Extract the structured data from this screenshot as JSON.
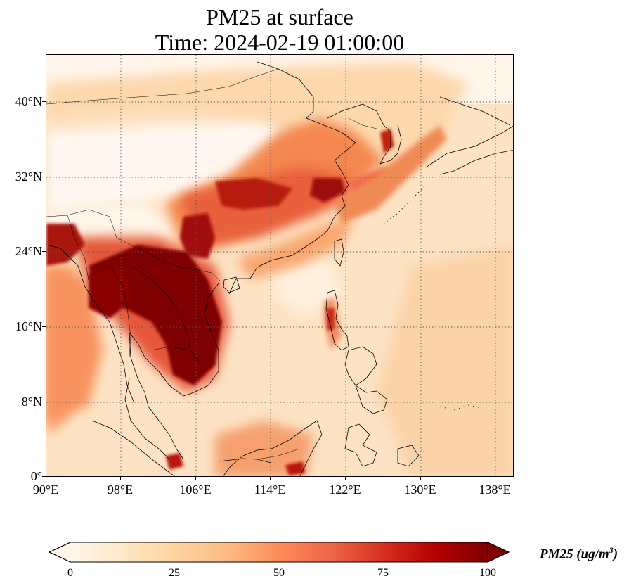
{
  "title": {
    "line1": "PM25 at surface",
    "line2": "Time: 2024-02-19 01:00:00"
  },
  "map": {
    "projection": "plate carree",
    "lon_range": [
      90,
      140
    ],
    "lat_range": [
      0,
      45
    ],
    "gridlines": "dotted",
    "x_ticks": [
      {
        "lon": 90,
        "label": "90°E"
      },
      {
        "lon": 98,
        "label": "98°E"
      },
      {
        "lon": 106,
        "label": "106°E"
      },
      {
        "lon": 114,
        "label": "114°E"
      },
      {
        "lon": 122,
        "label": "122°E"
      },
      {
        "lon": 130,
        "label": "130°E"
      },
      {
        "lon": 138,
        "label": "138°E"
      }
    ],
    "y_ticks": [
      {
        "lat": 0,
        "label": "0°"
      },
      {
        "lat": 8,
        "label": "8°N"
      },
      {
        "lat": 16,
        "label": "16°N"
      },
      {
        "lat": 24,
        "label": "24°N"
      },
      {
        "lat": 32,
        "label": "32°N"
      },
      {
        "lat": 40,
        "label": "40°N"
      }
    ],
    "colormap": "OrRd",
    "color_stops": [
      "#fff7ec",
      "#fee8c8",
      "#fdd49e",
      "#fdbb84",
      "#fc8d59",
      "#ef6548",
      "#d7301f",
      "#b30000",
      "#7f0000"
    ]
  },
  "colorbar": {
    "min": 0,
    "max": 100,
    "extend": "both",
    "ticks": [
      {
        "value": 0,
        "label": "0"
      },
      {
        "value": 25,
        "label": "25"
      },
      {
        "value": 50,
        "label": "50"
      },
      {
        "value": 75,
        "label": "75"
      },
      {
        "value": 100,
        "label": "100"
      }
    ],
    "label_main": "PM25 (ug/m",
    "label_sup": "3",
    "label_close": ")"
  }
}
